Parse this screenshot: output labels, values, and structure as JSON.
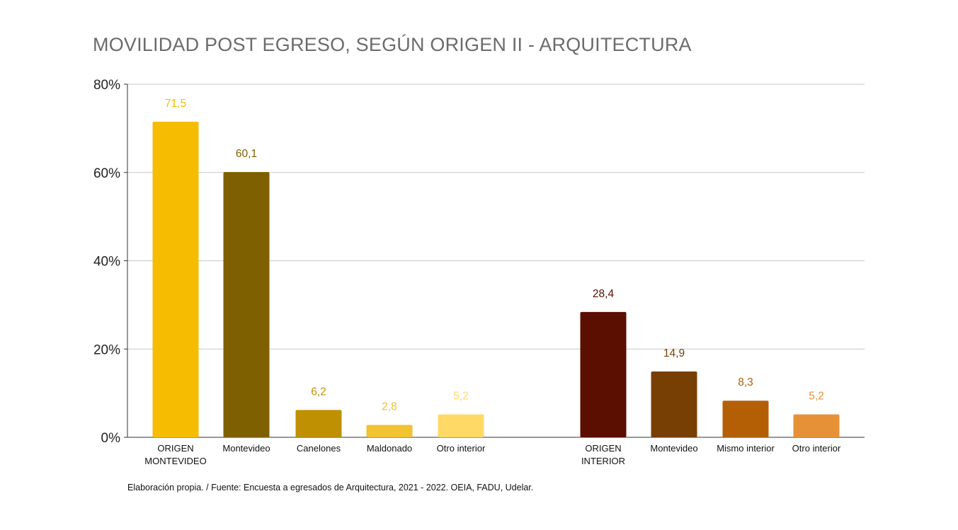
{
  "title": "MOVILIDAD POST EGRESO, SEGÚN ORIGEN II - ARQUITECTURA",
  "footnote": "Elaboración propia. / Fuente: Encuesta a egresados de Arquitectura, 2021 - 2022. OEIA, FADU, Udelar.",
  "chart_data": {
    "type": "bar",
    "ylim": [
      0,
      80
    ],
    "yticks": [
      "0%",
      "20%",
      "40%",
      "60%",
      "80%"
    ],
    "ytick_values": [
      0,
      20,
      40,
      60,
      80
    ],
    "grid": true,
    "bars": [
      {
        "label": [
          "ORIGEN",
          "MONTEVIDEO"
        ],
        "value": 71.5,
        "value_label": "71,5",
        "color": "#F6BC02",
        "label_color": "#F6BC02"
      },
      {
        "label": [
          "Montevideo"
        ],
        "value": 60.1,
        "value_label": "60,1",
        "color": "#7F6001",
        "label_color": "#7F6001"
      },
      {
        "label": [
          "Canelones"
        ],
        "value": 6.2,
        "value_label": "6,2",
        "color": "#BF9001",
        "label_color": "#BF9001"
      },
      {
        "label": [
          "Maldonado"
        ],
        "value": 2.8,
        "value_label": "2,8",
        "color": "#F1C232",
        "label_color": "#F1C232"
      },
      {
        "label": [
          "Otro interior"
        ],
        "value": 5.2,
        "value_label": "5,2",
        "color": "#FFD966",
        "label_color": "#FFD966"
      },
      {
        "label": [
          "ORIGEN",
          "INTERIOR"
        ],
        "value": 28.4,
        "value_label": "28,4",
        "color": "#5B0F00",
        "label_color": "#5B0F00"
      },
      {
        "label": [
          "Montevideo"
        ],
        "value": 14.9,
        "value_label": "14,9",
        "color": "#783F04",
        "label_color": "#783F04"
      },
      {
        "label": [
          "Mismo interior"
        ],
        "value": 8.3,
        "value_label": "8,3",
        "color": "#B45F06",
        "label_color": "#B45F06"
      },
      {
        "label": [
          "Otro interior"
        ],
        "value": 5.2,
        "value_label": "5,2",
        "color": "#E69138",
        "label_color": "#E69138"
      }
    ]
  }
}
